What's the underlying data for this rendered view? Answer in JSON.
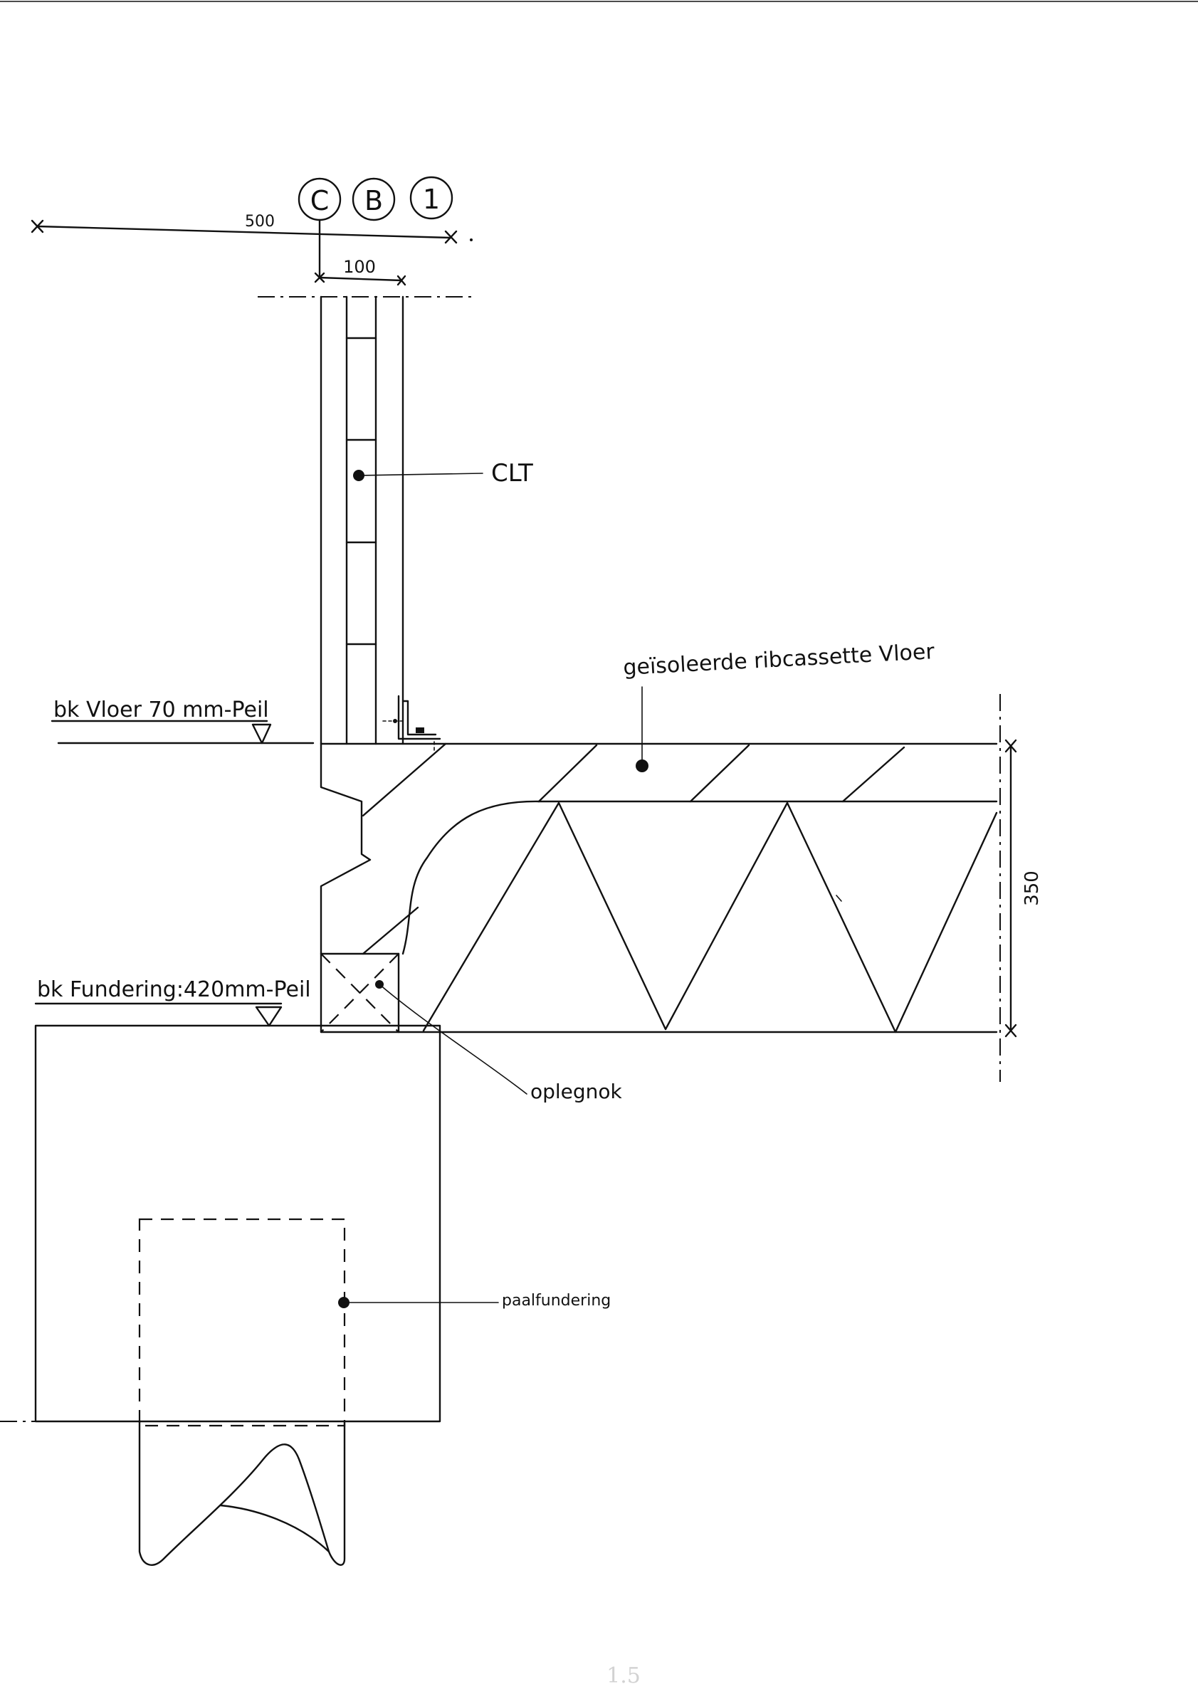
{
  "axes": [
    {
      "label": "C"
    },
    {
      "label": "B"
    },
    {
      "label": "1"
    }
  ],
  "dimensions": {
    "top_width": "500",
    "wall_thickness": "100",
    "floor_height": "350"
  },
  "levels": {
    "floor": "bk Vloer 70 mm-Peil",
    "foundation": "bk Fundering:420mm-Peil"
  },
  "callouts": {
    "wall": "CLT",
    "floor": "geïsoleerde ribcassette Vloer",
    "support": "oplegnok",
    "pile": "paalfundering"
  },
  "page_number": "1.5"
}
